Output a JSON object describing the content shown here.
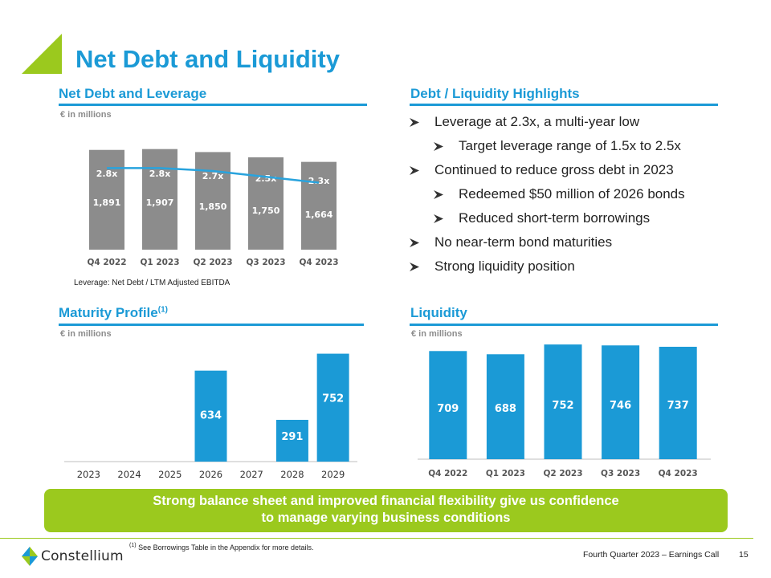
{
  "title": "Net Debt and Liquidity",
  "sections": {
    "net_debt": {
      "heading": "Net Debt and Leverage",
      "units": "€ in millions",
      "note": "Leverage: Net Debt / LTM Adjusted EBITDA"
    },
    "highlights": {
      "heading": "Debt / Liquidity Highlights",
      "items": [
        {
          "text": "Leverage at 2.3x, a multi-year low",
          "level": 0
        },
        {
          "text": "Target leverage range of 1.5x to 2.5x",
          "level": 1
        },
        {
          "text": "Continued to reduce gross debt in 2023",
          "level": 0
        },
        {
          "text": "Redeemed $50 million of 2026 bonds",
          "level": 1
        },
        {
          "text": "Reduced short-term borrowings",
          "level": 1
        },
        {
          "text": "No near-term bond maturities",
          "level": 0
        },
        {
          "text": "Strong liquidity position",
          "level": 0
        }
      ]
    },
    "maturity": {
      "heading": "Maturity Profile",
      "heading_sup": "(1)",
      "units": "€ in millions"
    },
    "liquidity": {
      "heading": "Liquidity",
      "units": "€ in millions"
    }
  },
  "callout": {
    "line1": "Strong balance sheet and improved financial flexibility give us confidence",
    "line2": "to manage varying business conditions"
  },
  "footer": {
    "company": "Constellium",
    "footnote_marker": "(1)",
    "footnote": "See Borrowings Table in the Appendix for more details.",
    "label": "Fourth Quarter 2023 – Earnings Call",
    "page": "15"
  },
  "colors": {
    "accent_blue": "#1b9ad6",
    "accent_green": "#9bc91e",
    "bar_gray": "#8c8c8c",
    "line_blue": "#29a3dd"
  },
  "chart_data": [
    {
      "id": "net_debt",
      "type": "bar",
      "categories": [
        "Q4 2022",
        "Q1 2023",
        "Q2 2023",
        "Q3 2023",
        "Q4 2023"
      ],
      "values": [
        1891,
        1907,
        1850,
        1750,
        1664
      ],
      "value_labels": [
        "1,891",
        "1,907",
        "1,850",
        "1,750",
        "1,664"
      ],
      "ylim": [
        0,
        2100
      ],
      "overlay": {
        "type": "line",
        "values": [
          2.8,
          2.8,
          2.7,
          2.5,
          2.3
        ],
        "labels": [
          "2.8x",
          "2.8x",
          "2.7x",
          "2.5x",
          "2.3x"
        ],
        "ylim": [
          0,
          3.8
        ]
      }
    },
    {
      "id": "maturity",
      "type": "bar",
      "categories": [
        "2023",
        "2024",
        "2025",
        "2026",
        "2027",
        "2028",
        "2029"
      ],
      "values": [
        0,
        0,
        0,
        634,
        0,
        291,
        752
      ],
      "value_labels": [
        "",
        "",
        "",
        "634",
        "",
        "291",
        "752"
      ],
      "ylim": [
        0,
        800
      ]
    },
    {
      "id": "liquidity",
      "type": "bar",
      "categories": [
        "Q4 2022",
        "Q1 2023",
        "Q2 2023",
        "Q3 2023",
        "Q4 2023"
      ],
      "values": [
        709,
        688,
        752,
        746,
        737
      ],
      "value_labels": [
        "709",
        "688",
        "752",
        "746",
        "737"
      ],
      "ylim": [
        0,
        800
      ]
    }
  ]
}
